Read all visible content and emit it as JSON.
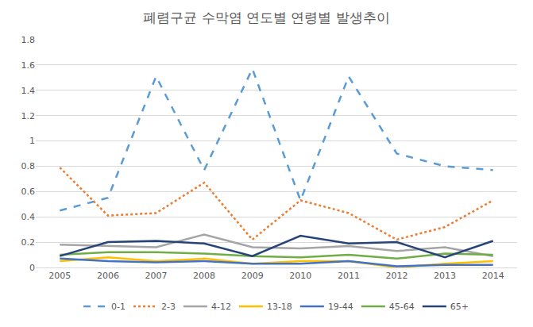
{
  "chart_data": {
    "type": "line",
    "title": "폐렴구균 수막염 연도별 연령별 발생추이",
    "categories": [
      "2005",
      "2006",
      "2007",
      "2008",
      "2009",
      "2010",
      "2011",
      "2012",
      "2013",
      "2014"
    ],
    "series": [
      {
        "name": "0-1",
        "color": "#5B9BD5",
        "line_style": "dash",
        "values": [
          0.45,
          0.55,
          1.51,
          0.77,
          1.57,
          0.53,
          1.51,
          0.9,
          0.8,
          0.77
        ]
      },
      {
        "name": "2-3",
        "color": "#ED7D31",
        "line_style": "dot",
        "values": [
          0.79,
          0.41,
          0.43,
          0.67,
          0.22,
          0.53,
          0.43,
          0.22,
          0.32,
          0.53
        ]
      },
      {
        "name": "4-12",
        "color": "#A5A5A5",
        "line_style": "solid",
        "values": [
          0.18,
          0.17,
          0.16,
          0.26,
          0.16,
          0.15,
          0.17,
          0.13,
          0.16,
          0.09
        ]
      },
      {
        "name": "13-18",
        "color": "#FFC000",
        "line_style": "solid",
        "values": [
          0.05,
          0.08,
          0.05,
          0.07,
          0.03,
          0.05,
          0.05,
          0.0,
          0.03,
          0.05
        ]
      },
      {
        "name": "19-44",
        "color": "#4472C4",
        "line_style": "solid",
        "values": [
          0.07,
          0.05,
          0.04,
          0.05,
          0.03,
          0.03,
          0.05,
          0.01,
          0.02,
          0.02
        ]
      },
      {
        "name": "45-64",
        "color": "#70AD47",
        "line_style": "solid",
        "values": [
          0.1,
          0.12,
          0.12,
          0.11,
          0.09,
          0.08,
          0.1,
          0.07,
          0.11,
          0.1
        ]
      },
      {
        "name": "65+",
        "color": "#264478",
        "line_style": "solid",
        "values": [
          0.09,
          0.2,
          0.21,
          0.19,
          0.09,
          0.25,
          0.19,
          0.2,
          0.08,
          0.21
        ]
      }
    ],
    "ylim": [
      0,
      1.8
    ],
    "yticks": [
      0,
      0.2,
      0.4,
      0.6,
      0.8,
      1,
      1.2,
      1.4,
      1.6,
      1.8
    ],
    "grid": true,
    "legend": "bottom"
  }
}
